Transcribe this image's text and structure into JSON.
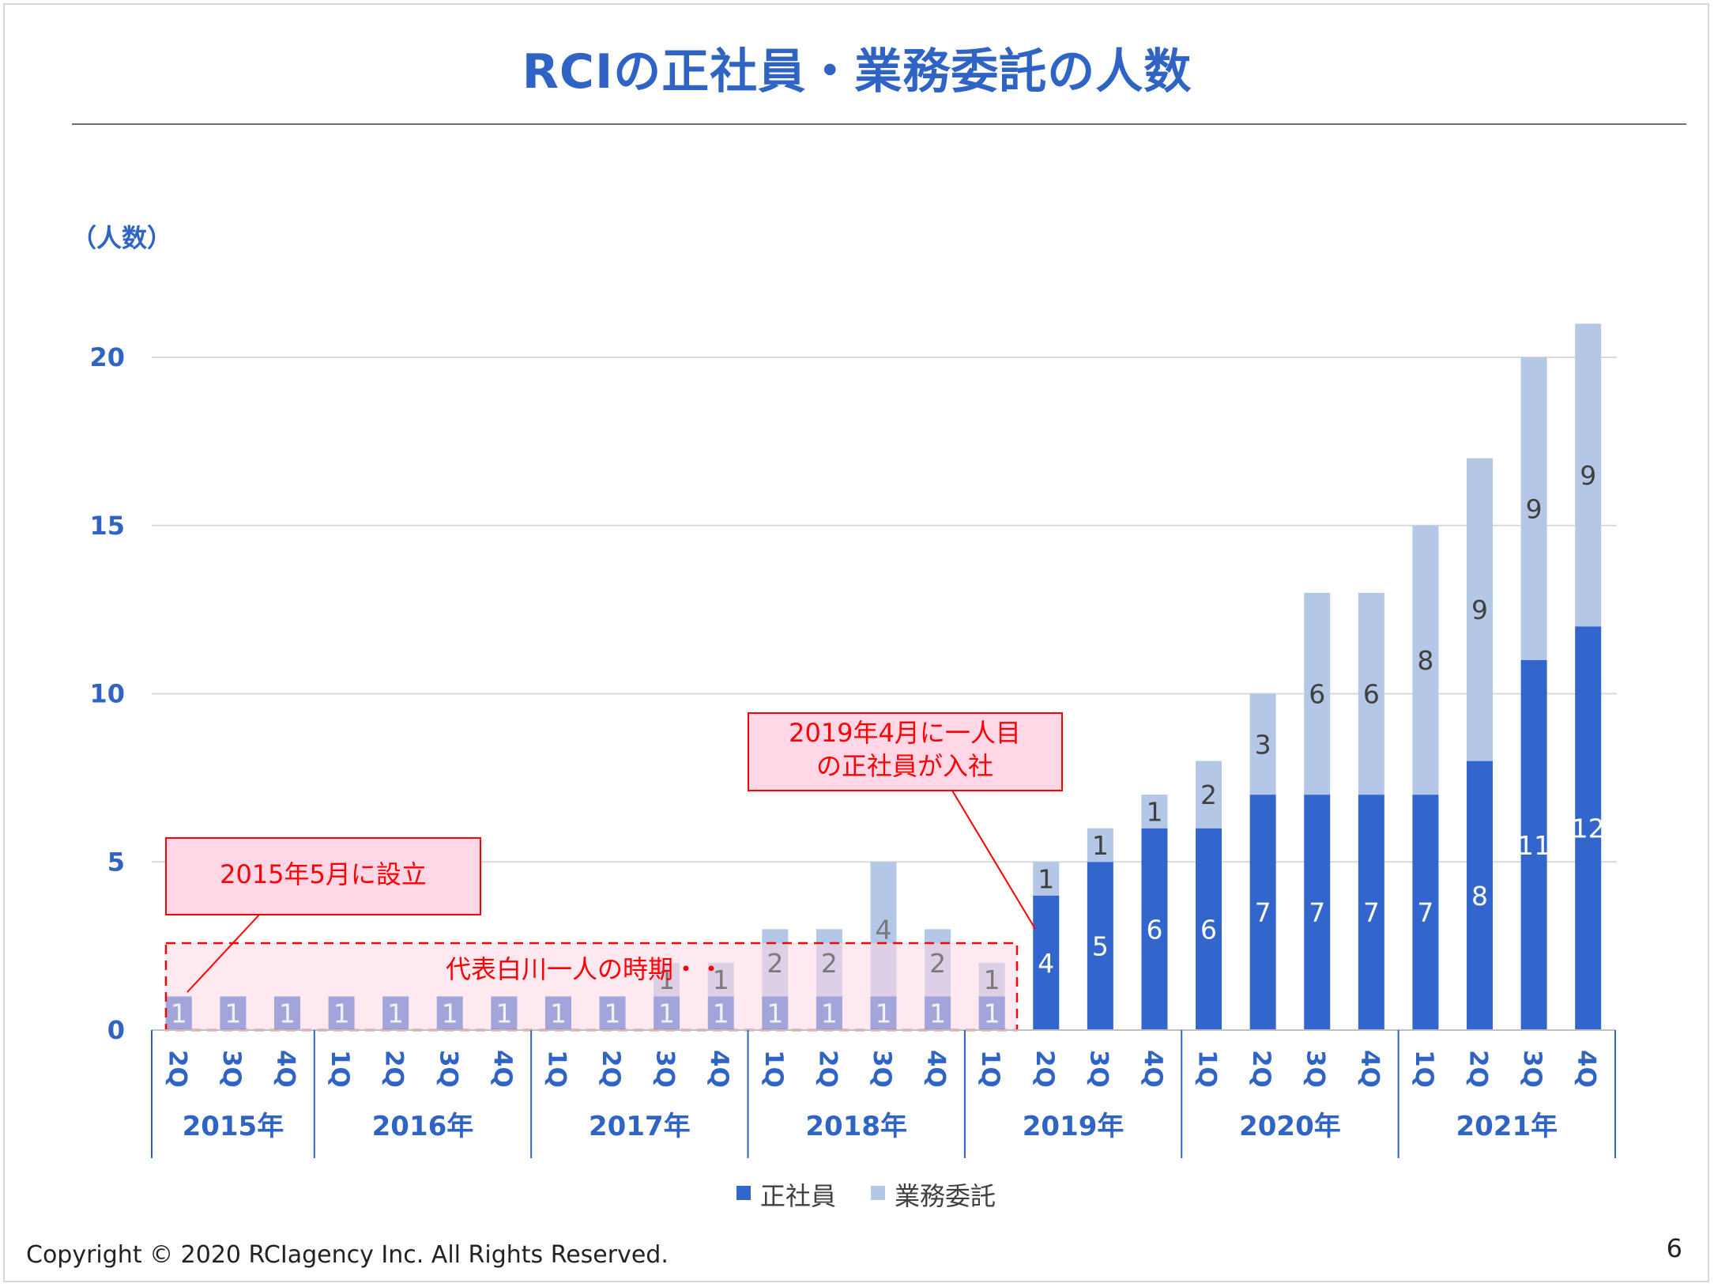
{
  "slide": {
    "title": "RCIの正社員・業務委託の人数",
    "y_unit": "（人数）",
    "footer": "Copyright © 2020 RCIagency Inc. All Rights Reserved.",
    "page_number": "6"
  },
  "colors": {
    "title": "#2f63c4",
    "axis_text": "#2f63c4",
    "seishain": "#3366cc",
    "gyomu_itaku": "#b4c7e7",
    "annotation_red": "#ff0000",
    "annotation_fill": "#ffd7e6"
  },
  "annotations": {
    "founded": "2015年5月に設立",
    "first_employee_line1": "2019年4月に一人目",
    "first_employee_line2": "の正社員が入社",
    "solo_period": "代表白川一人の時期・・"
  },
  "chart_data": {
    "type": "bar",
    "stacked": true,
    "ylim": [
      0,
      22
    ],
    "yticks": [
      0,
      5,
      10,
      15,
      20
    ],
    "grid": true,
    "legend_position": "bottom",
    "categories": [
      "2Q",
      "3Q",
      "4Q",
      "1Q",
      "2Q",
      "3Q",
      "4Q",
      "1Q",
      "2Q",
      "3Q",
      "4Q",
      "1Q",
      "2Q",
      "3Q",
      "4Q",
      "1Q",
      "2Q",
      "3Q",
      "4Q",
      "1Q",
      "2Q",
      "3Q",
      "4Q",
      "1Q",
      "2Q",
      "3Q",
      "4Q"
    ],
    "years": [
      {
        "label": "2015年",
        "count": 3
      },
      {
        "label": "2016年",
        "count": 4
      },
      {
        "label": "2017年",
        "count": 4
      },
      {
        "label": "2018年",
        "count": 4
      },
      {
        "label": "2019年",
        "count": 4
      },
      {
        "label": "2020年",
        "count": 4
      },
      {
        "label": "2021年",
        "count": 4
      }
    ],
    "series": [
      {
        "name": "正社員",
        "values": [
          1,
          1,
          1,
          1,
          1,
          1,
          1,
          1,
          1,
          1,
          1,
          1,
          1,
          1,
          1,
          1,
          4,
          5,
          6,
          6,
          7,
          7,
          7,
          7,
          8,
          11,
          12
        ]
      },
      {
        "name": "業務委託",
        "values": [
          0,
          0,
          0,
          0,
          0,
          0,
          0,
          0,
          0,
          1,
          1,
          2,
          2,
          4,
          2,
          1,
          1,
          1,
          1,
          2,
          3,
          6,
          6,
          8,
          9,
          9,
          9
        ]
      }
    ]
  }
}
